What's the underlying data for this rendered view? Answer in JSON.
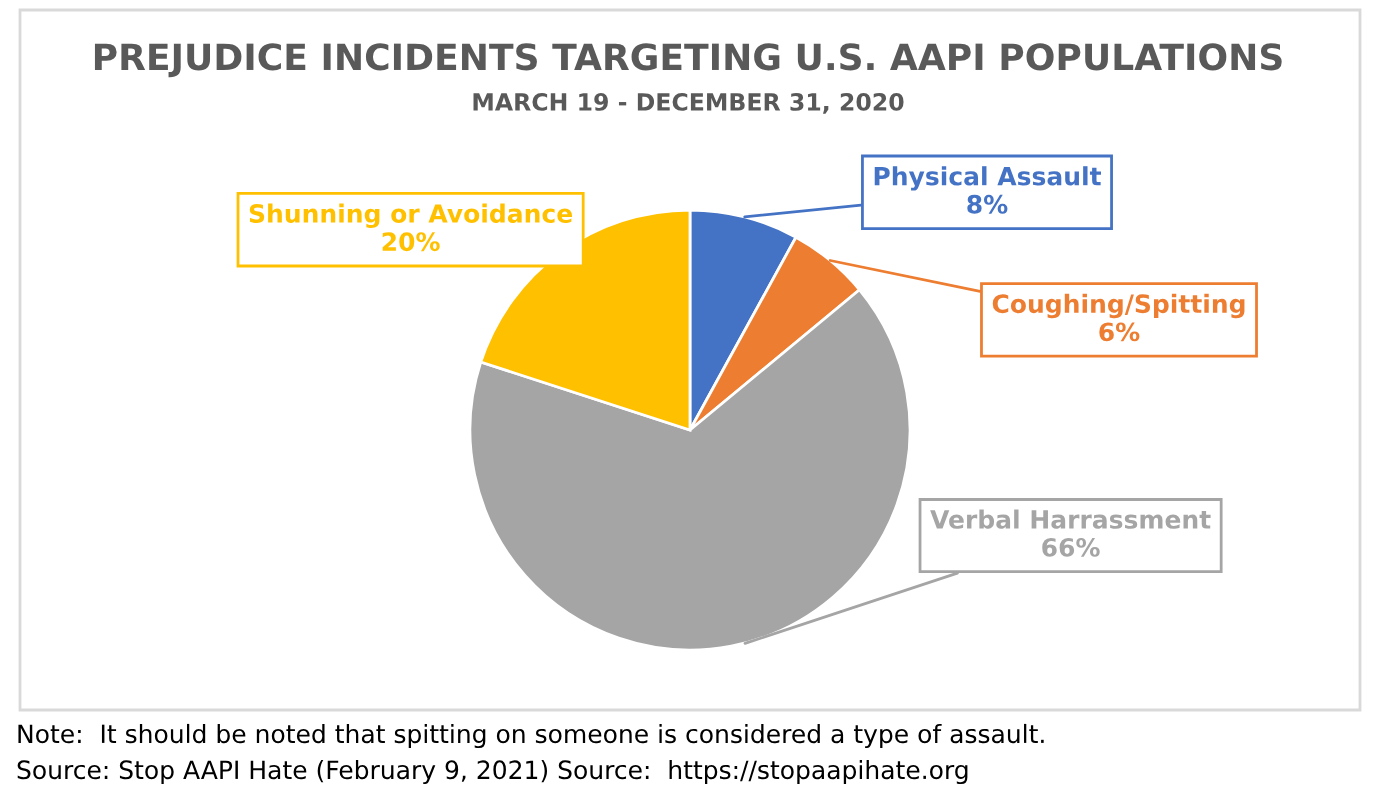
{
  "chart_data": {
    "type": "pie",
    "title": "PREJUDICE INCIDENTS TARGETING U.S. AAPI POPULATIONS",
    "subtitle": "MARCH 19 - DECEMBER 31, 2020",
    "categories": [
      "Physical Assault",
      "Coughing/Spitting",
      "Verbal Harrassment",
      "Shunning or Avoidance"
    ],
    "values": [
      8,
      6,
      66,
      20
    ],
    "value_labels": [
      "8%",
      "6%",
      "66%",
      "20%"
    ],
    "colors": [
      "#4472c4",
      "#ed7d31",
      "#a5a5a5",
      "#ffc000"
    ],
    "legend": false,
    "annotations": [
      "Note:  It should be noted that spitting on someone is considered a type of assault.",
      "Source: Stop AAPI Hate (February 9, 2021) Source:  https://stopaapihate.org"
    ]
  }
}
